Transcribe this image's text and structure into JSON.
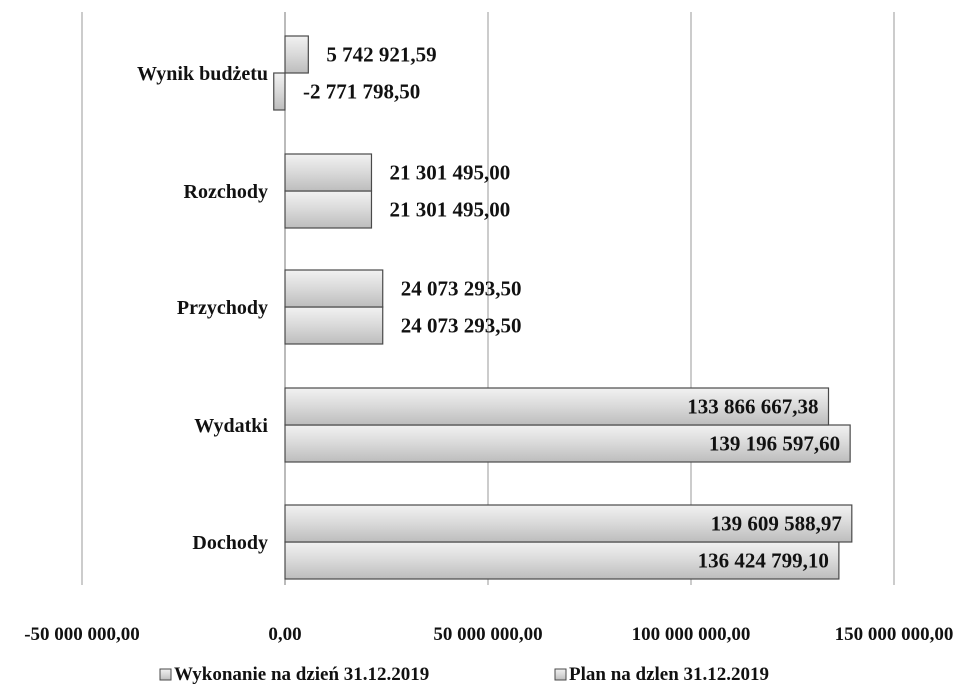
{
  "chart_data": {
    "type": "bar",
    "orientation": "horizontal",
    "categories": [
      "Dochody",
      "Wydatki",
      "Przychody",
      "Rozchody",
      "Wynik budżetu"
    ],
    "series": [
      {
        "name": "Wykonanie na dzień 31.12.2019",
        "values": [
          136424799.1,
          139196597.6,
          24073293.5,
          21301495.0,
          -2771798.5
        ],
        "labels": [
          "136 424 799,10",
          "139 196 597,60",
          "24 073 293,50",
          "21 301 495,00",
          "-2 771 798,50"
        ],
        "color": "#d8d8d8"
      },
      {
        "name": "Plan na dzlen 31.12.2019",
        "values": [
          139609588.97,
          133866667.38,
          24073293.5,
          21301495.0,
          5742921.59
        ],
        "labels": [
          "139 609 588,97",
          "133 866 667,38",
          "24 073 293,50",
          "21 301 495,00",
          "5 742 921,59"
        ],
        "color": "#cfcfcf"
      }
    ],
    "xlim": [
      -50000000,
      150000000
    ],
    "ticks": [
      -50000000,
      0,
      50000000,
      100000000,
      150000000
    ],
    "tick_labels": [
      "-50 000 000,00",
      "0,00",
      "50 000 000,00",
      "100 000 000,00",
      "150 000 000,00"
    ],
    "grid": true,
    "legend": "bottom"
  }
}
